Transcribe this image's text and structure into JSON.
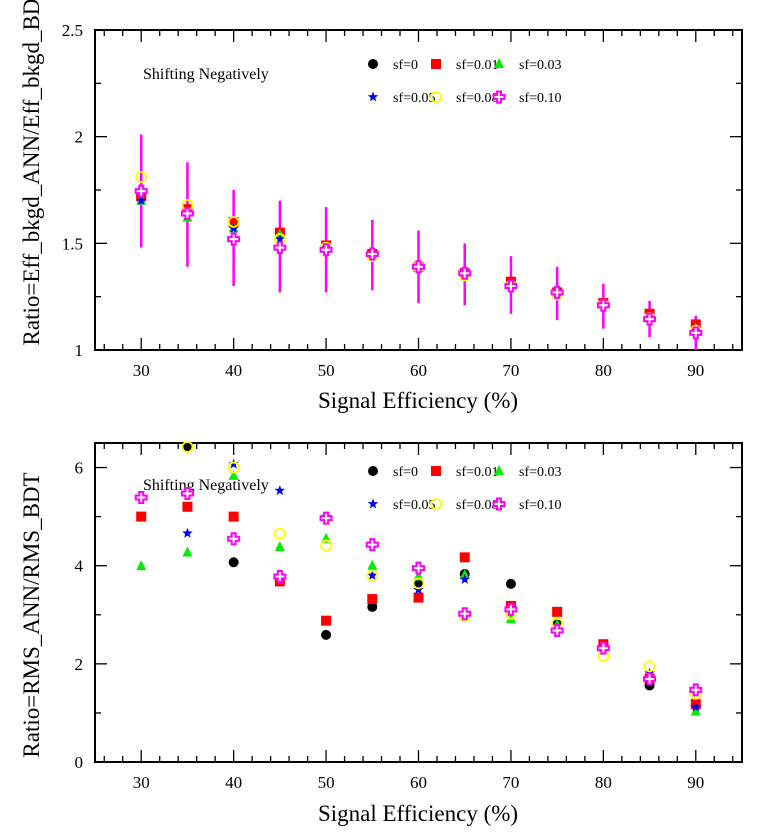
{
  "chart_data": [
    {
      "type": "scatter",
      "title": "",
      "annotation": "Shifting Negatively",
      "xlabel": "Signal Efficiency (%)",
      "ylabel": "Ratio=Eff_bkgd_ANN/Eff_bkgd_BDT",
      "xlim": [
        25,
        95
      ],
      "ylim": [
        1,
        2.5
      ],
      "xticks": [
        30,
        40,
        50,
        60,
        70,
        80,
        90
      ],
      "yticks": [
        1,
        1.5,
        2,
        2.5
      ],
      "ytick_labels": [
        "1",
        "1.5",
        "2",
        "2.5"
      ],
      "grid": false,
      "legend_placement": "top-right",
      "x": [
        30,
        35,
        40,
        45,
        50,
        55,
        60,
        65,
        70,
        75,
        80,
        85,
        90
      ],
      "series": [
        {
          "name": "sf=0",
          "marker": "circle",
          "color": "#000000",
          "values": [
            1.72,
            1.65,
            1.6,
            1.55,
            1.49,
            1.45,
            1.39,
            1.36,
            1.31,
            1.27,
            1.22,
            1.16,
            1.11
          ]
        },
        {
          "name": "sf=0.01",
          "marker": "square",
          "color": "#ff0000",
          "values": [
            1.72,
            1.66,
            1.6,
            1.55,
            1.49,
            1.45,
            1.39,
            1.36,
            1.32,
            1.27,
            1.22,
            1.17,
            1.12
          ]
        },
        {
          "name": "sf=0.03",
          "marker": "triangle",
          "color": "#00ee00",
          "values": [
            1.7,
            1.62,
            1.57,
            1.54,
            1.48,
            1.44,
            1.39,
            1.35,
            1.3,
            1.26,
            1.21,
            1.15,
            1.1
          ]
        },
        {
          "name": "sf=0.05",
          "marker": "star",
          "color": "#0000ff",
          "values": [
            1.7,
            1.63,
            1.57,
            1.52,
            1.48,
            1.44,
            1.39,
            1.36,
            1.31,
            1.27,
            1.21,
            1.15,
            1.09
          ]
        },
        {
          "name": "sf=0.08",
          "marker": "open-circle",
          "color": "#ffff00",
          "values": [
            1.81,
            1.68,
            1.6,
            1.52,
            1.48,
            1.44,
            1.39,
            1.35,
            1.3,
            1.26,
            1.21,
            1.15,
            1.09
          ]
        },
        {
          "name": "sf=0.10",
          "marker": "open-cross",
          "color": "#ff00ff",
          "values": [
            1.745,
            1.64,
            1.52,
            1.48,
            1.47,
            1.45,
            1.39,
            1.36,
            1.3,
            1.27,
            1.21,
            1.145,
            1.08
          ],
          "err_low": [
            1.48,
            1.39,
            1.3,
            1.27,
            1.27,
            1.28,
            1.22,
            1.21,
            1.17,
            1.14,
            1.1,
            1.06,
            1.0
          ],
          "err_high": [
            2.01,
            1.88,
            1.75,
            1.7,
            1.67,
            1.61,
            1.56,
            1.5,
            1.44,
            1.39,
            1.31,
            1.23,
            1.16
          ]
        }
      ]
    },
    {
      "type": "scatter",
      "title": "",
      "annotation": "Shifting Negatively",
      "xlabel": "Signal Efficiency (%)",
      "ylabel": "Ratio=RMS_ANN/RMS_BDT",
      "xlim": [
        25,
        95
      ],
      "ylim": [
        0,
        6.5
      ],
      "xticks": [
        30,
        40,
        50,
        60,
        70,
        80,
        90
      ],
      "yticks": [
        0,
        2,
        4,
        6
      ],
      "ytick_labels": [
        "0",
        "2",
        "4",
        "6"
      ],
      "grid": false,
      "legend_placement": "top-right",
      "x": [
        30,
        35,
        40,
        45,
        50,
        55,
        60,
        65,
        70,
        75,
        80,
        85,
        90
      ],
      "series": [
        {
          "name": "sf=0",
          "marker": "circle",
          "color": "#000000",
          "values": [
            null,
            6.42,
            4.07,
            3.77,
            2.59,
            3.16,
            3.64,
            3.83,
            3.63,
            2.8,
            2.32,
            1.56,
            1.15
          ]
        },
        {
          "name": "sf=0.01",
          "marker": "square",
          "color": "#ff0000",
          "values": [
            5.0,
            5.2,
            5.0,
            3.68,
            2.88,
            3.32,
            3.35,
            4.17,
            3.18,
            3.06,
            2.4,
            1.7,
            1.18
          ]
        },
        {
          "name": "sf=0.03",
          "marker": "triangle",
          "color": "#00ee00",
          "values": [
            3.99,
            4.27,
            5.83,
            4.38,
            4.55,
            4.0,
            3.78,
            3.81,
            2.91,
            2.8,
            2.34,
            1.74,
            1.03
          ]
        },
        {
          "name": "sf=0.05",
          "marker": "star",
          "color": "#0000ff",
          "values": [
            null,
            4.66,
            6.07,
            5.53,
            5.0,
            3.8,
            3.51,
            3.72,
            3.06,
            2.73,
            2.28,
            1.81,
            1.12
          ]
        },
        {
          "name": "sf=0.08",
          "marker": "open-circle",
          "color": "#ffff00",
          "values": [
            null,
            6.42,
            6.0,
            4.65,
            4.41,
            3.79,
            3.64,
            2.97,
            3.02,
            2.83,
            2.16,
            1.95,
            1.39
          ]
        },
        {
          "name": "sf=0.10",
          "marker": "open-cross",
          "color": "#ff00ff",
          "values": [
            5.39,
            5.47,
            4.55,
            3.78,
            4.97,
            4.43,
            3.95,
            3.02,
            3.11,
            2.68,
            2.32,
            1.69,
            1.47
          ]
        }
      ]
    }
  ]
}
